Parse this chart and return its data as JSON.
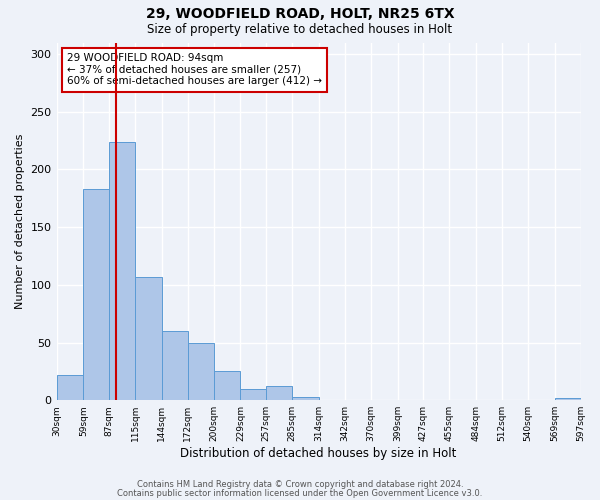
{
  "title1": "29, WOODFIELD ROAD, HOLT, NR25 6TX",
  "title2": "Size of property relative to detached houses in Holt",
  "xlabel": "Distribution of detached houses by size in Holt",
  "ylabel": "Number of detached properties",
  "bar_edges": [
    30,
    59,
    87,
    115,
    144,
    172,
    200,
    229,
    257,
    285,
    314,
    342,
    370,
    399,
    427,
    455,
    484,
    512,
    540,
    569,
    597
  ],
  "bar_heights": [
    22,
    183,
    224,
    107,
    60,
    50,
    25,
    10,
    12,
    3,
    0,
    0,
    0,
    0,
    0,
    0,
    0,
    0,
    0,
    2
  ],
  "bar_color": "#aec6e8",
  "bar_edgecolor": "#5b9bd5",
  "vline_x": 94,
  "vline_color": "#cc0000",
  "annotation_line1": "29 WOODFIELD ROAD: 94sqm",
  "annotation_line2": "← 37% of detached houses are smaller (257)",
  "annotation_line3": "60% of semi-detached houses are larger (412) →",
  "ylim": [
    0,
    310
  ],
  "yticks": [
    0,
    50,
    100,
    150,
    200,
    250,
    300
  ],
  "background_color": "#eef2f9",
  "grid_color": "#ffffff",
  "footer1": "Contains HM Land Registry data © Crown copyright and database right 2024.",
  "footer2": "Contains public sector information licensed under the Open Government Licence v3.0."
}
